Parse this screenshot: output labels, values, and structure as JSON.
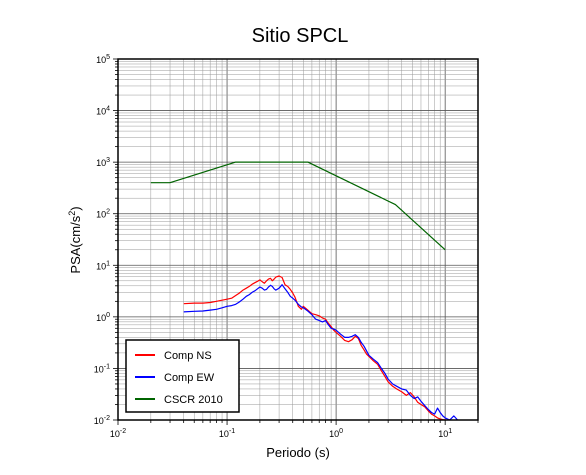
{
  "chart_data": {
    "type": "line",
    "title": "Sitio SPCL",
    "xlabel": "Periodo (s)",
    "ylabel": {
      "base": "PSA(cm/s",
      "sup": "2",
      "tail": ")"
    },
    "x_scale": "log",
    "y_scale": "log",
    "xlim": [
      0.01,
      20
    ],
    "ylim": [
      0.01,
      100000
    ],
    "grid": true,
    "legend_position": "bottom-left",
    "x_ticks": [
      {
        "value": 0.01,
        "base": "10",
        "exp": "-2"
      },
      {
        "value": 0.1,
        "base": "10",
        "exp": "-1"
      },
      {
        "value": 1,
        "base": "10",
        "exp": "0"
      },
      {
        "value": 10,
        "base": "10",
        "exp": "1"
      }
    ],
    "y_ticks": [
      {
        "value": 0.01,
        "base": "10",
        "exp": "-2"
      },
      {
        "value": 0.1,
        "base": "10",
        "exp": "-1"
      },
      {
        "value": 1,
        "base": "10",
        "exp": "0"
      },
      {
        "value": 10,
        "base": "10",
        "exp": "1"
      },
      {
        "value": 100,
        "base": "10",
        "exp": "2"
      },
      {
        "value": 1000,
        "base": "10",
        "exp": "3"
      },
      {
        "value": 10000,
        "base": "10",
        "exp": "4"
      },
      {
        "value": 100000,
        "base": "10",
        "exp": "5"
      }
    ],
    "series": [
      {
        "name": "Comp NS",
        "color": "#ff0000",
        "x": [
          0.04,
          0.05,
          0.06,
          0.07,
          0.08,
          0.09,
          0.1,
          0.11,
          0.12,
          0.13,
          0.14,
          0.15,
          0.16,
          0.17,
          0.18,
          0.19,
          0.2,
          0.21,
          0.22,
          0.23,
          0.24,
          0.25,
          0.26,
          0.27,
          0.28,
          0.3,
          0.32,
          0.34,
          0.36,
          0.38,
          0.4,
          0.42,
          0.45,
          0.48,
          0.5,
          0.55,
          0.6,
          0.65,
          0.7,
          0.75,
          0.8,
          0.85,
          0.9,
          0.95,
          1.0,
          1.1,
          1.2,
          1.3,
          1.4,
          1.5,
          1.6,
          1.7,
          1.8,
          1.9,
          2.0,
          2.2,
          2.4,
          2.6,
          2.8,
          3.0,
          3.3,
          3.6,
          4.0,
          4.4,
          4.8,
          5.2,
          5.6,
          6.0,
          6.5,
          7.0,
          7.5,
          8.0,
          8.5,
          9.0,
          9.5,
          10.0
        ],
        "y": [
          1.8,
          1.85,
          1.85,
          1.9,
          2.0,
          2.1,
          2.2,
          2.3,
          2.6,
          2.9,
          3.3,
          3.6,
          3.9,
          4.3,
          4.6,
          4.9,
          5.2,
          4.8,
          4.5,
          5.0,
          5.4,
          5.6,
          5.0,
          5.4,
          5.9,
          6.2,
          5.8,
          4.2,
          3.9,
          3.4,
          2.9,
          2.4,
          1.6,
          1.4,
          1.6,
          1.35,
          1.15,
          1.1,
          1.05,
          0.95,
          0.9,
          0.75,
          0.65,
          0.55,
          0.5,
          0.42,
          0.35,
          0.33,
          0.36,
          0.42,
          0.38,
          0.28,
          0.23,
          0.19,
          0.17,
          0.14,
          0.12,
          0.09,
          0.07,
          0.055,
          0.045,
          0.04,
          0.035,
          0.03,
          0.034,
          0.028,
          0.022,
          0.02,
          0.018,
          0.015,
          0.013,
          0.012,
          0.011,
          0.0105,
          0.0102,
          0.01
        ]
      },
      {
        "name": "Comp EW",
        "color": "#0000ff",
        "x": [
          0.04,
          0.05,
          0.06,
          0.07,
          0.08,
          0.09,
          0.1,
          0.11,
          0.12,
          0.13,
          0.14,
          0.15,
          0.16,
          0.17,
          0.18,
          0.19,
          0.2,
          0.21,
          0.22,
          0.23,
          0.24,
          0.25,
          0.26,
          0.27,
          0.28,
          0.3,
          0.32,
          0.34,
          0.36,
          0.38,
          0.4,
          0.42,
          0.45,
          0.48,
          0.5,
          0.55,
          0.6,
          0.65,
          0.7,
          0.75,
          0.8,
          0.85,
          0.9,
          0.95,
          1.0,
          1.1,
          1.2,
          1.3,
          1.4,
          1.5,
          1.6,
          1.7,
          1.8,
          1.9,
          2.0,
          2.2,
          2.4,
          2.6,
          2.8,
          3.0,
          3.3,
          3.6,
          4.0,
          4.4,
          4.8,
          5.2,
          5.6,
          6.0,
          6.5,
          7.0,
          7.5,
          8.0,
          8.5,
          9.0,
          9.5,
          10.0,
          11.0,
          12.0,
          13.0
        ],
        "y": [
          1.25,
          1.28,
          1.3,
          1.35,
          1.4,
          1.5,
          1.6,
          1.65,
          1.75,
          1.95,
          2.2,
          2.5,
          2.7,
          3.0,
          3.2,
          3.5,
          3.8,
          3.6,
          3.3,
          3.4,
          3.8,
          4.1,
          3.9,
          3.5,
          3.3,
          3.6,
          4.2,
          3.5,
          3.0,
          2.5,
          2.3,
          2.1,
          1.75,
          1.55,
          1.5,
          1.3,
          1.1,
          0.9,
          0.85,
          0.8,
          0.85,
          0.7,
          0.6,
          0.58,
          0.55,
          0.46,
          0.4,
          0.4,
          0.42,
          0.45,
          0.4,
          0.32,
          0.27,
          0.22,
          0.18,
          0.15,
          0.13,
          0.1,
          0.08,
          0.062,
          0.05,
          0.045,
          0.04,
          0.038,
          0.03,
          0.026,
          0.028,
          0.023,
          0.019,
          0.016,
          0.014,
          0.013,
          0.017,
          0.014,
          0.012,
          0.011,
          0.01,
          0.012,
          0.01
        ]
      },
      {
        "name": "CSCR 2010",
        "color": "#006400",
        "x": [
          0.02,
          0.03,
          0.12,
          0.55,
          3.5,
          10.0
        ],
        "y": [
          400,
          400,
          1000,
          1000,
          150,
          20
        ]
      }
    ]
  }
}
